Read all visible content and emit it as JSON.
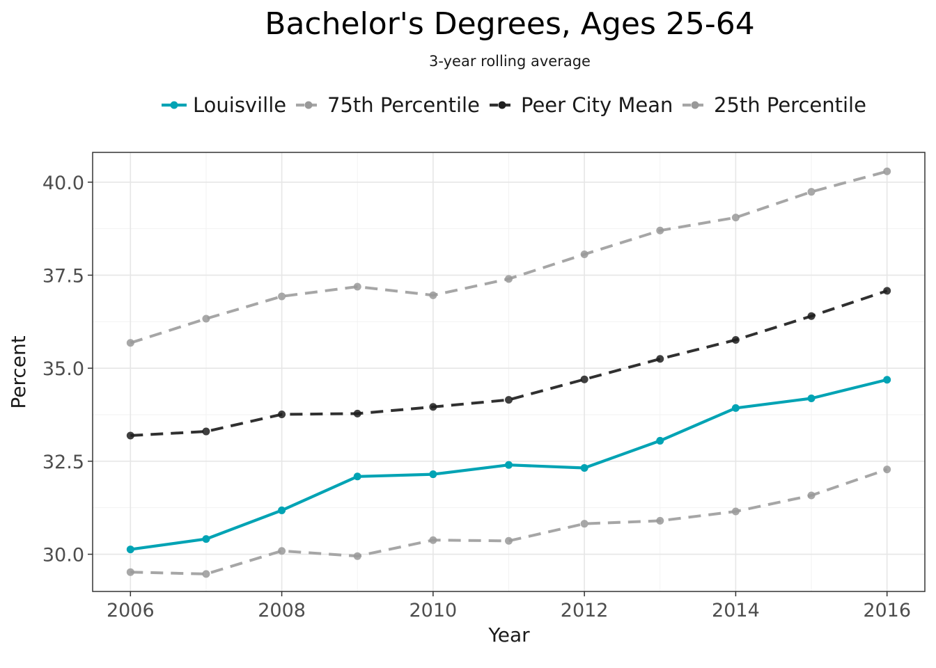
{
  "chart_data": {
    "type": "line",
    "title": "Bachelor's Degrees, Ages 25-64",
    "subtitle": "3-year rolling average",
    "xlabel": "Year",
    "ylabel": "Percent",
    "x": [
      2006,
      2007,
      2008,
      2009,
      2010,
      2011,
      2012,
      2013,
      2014,
      2015,
      2016
    ],
    "xlim": [
      2005.5,
      2016.5
    ],
    "ylim": [
      29.0,
      40.8
    ],
    "xticks": [
      2006,
      2008,
      2010,
      2012,
      2014,
      2016
    ],
    "yticks": [
      30.0,
      32.5,
      35.0,
      37.5,
      40.0
    ],
    "ytick_labels": [
      "30.0",
      "32.5",
      "35.0",
      "37.5",
      "40.0"
    ],
    "grid": true,
    "legend_position": "top",
    "series": [
      {
        "name": "Louisville",
        "color": "#00a3b4",
        "dashed": false,
        "values": [
          30.13,
          30.41,
          31.18,
          32.09,
          32.15,
          32.4,
          32.32,
          33.05,
          33.93,
          34.19,
          34.69
        ]
      },
      {
        "name": "75th Percentile",
        "color": "#a6a6a6",
        "dashed": true,
        "values": [
          35.68,
          36.33,
          36.93,
          37.19,
          36.96,
          37.4,
          38.06,
          38.7,
          39.05,
          39.74,
          40.29
        ]
      },
      {
        "name": "Peer City Mean",
        "color": "#303030",
        "dashed": true,
        "values": [
          33.19,
          33.3,
          33.76,
          33.78,
          33.96,
          34.15,
          34.7,
          35.25,
          35.76,
          36.4,
          37.08
        ]
      },
      {
        "name": "25th Percentile",
        "color": "#a6a6a6",
        "dashed": true,
        "values": [
          29.52,
          29.47,
          30.09,
          29.95,
          30.38,
          30.36,
          30.82,
          30.9,
          31.15,
          31.58,
          32.28
        ]
      }
    ]
  }
}
